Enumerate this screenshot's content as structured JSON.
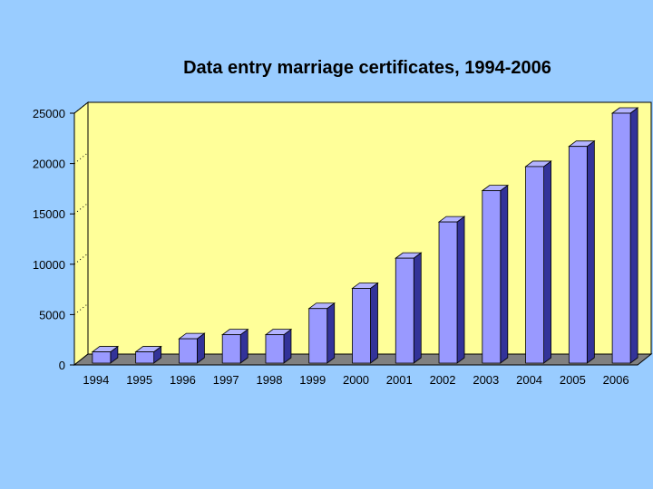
{
  "chart_data": {
    "type": "bar",
    "title": "Data entry marriage certificates, 1994-2006",
    "xlabel": "",
    "ylabel": "",
    "categories": [
      "1994",
      "1995",
      "1996",
      "1997",
      "1998",
      "1999",
      "2000",
      "2001",
      "2002",
      "2003",
      "2004",
      "2005",
      "2006"
    ],
    "values": [
      1300,
      1300,
      2600,
      3000,
      3000,
      5600,
      7600,
      10600,
      14200,
      17300,
      19700,
      21700,
      25000
    ],
    "ylim": [
      0,
      25000
    ],
    "yticks": [
      0,
      5000,
      10000,
      15000,
      20000,
      25000
    ],
    "grid": false,
    "style": "3d",
    "colors": {
      "background": "#99ccff",
      "plot_area": "#ffff99",
      "floor": "#808080",
      "bar_front": "#9999ff",
      "bar_top": "#b3b3ff",
      "bar_side": "#333399"
    }
  }
}
